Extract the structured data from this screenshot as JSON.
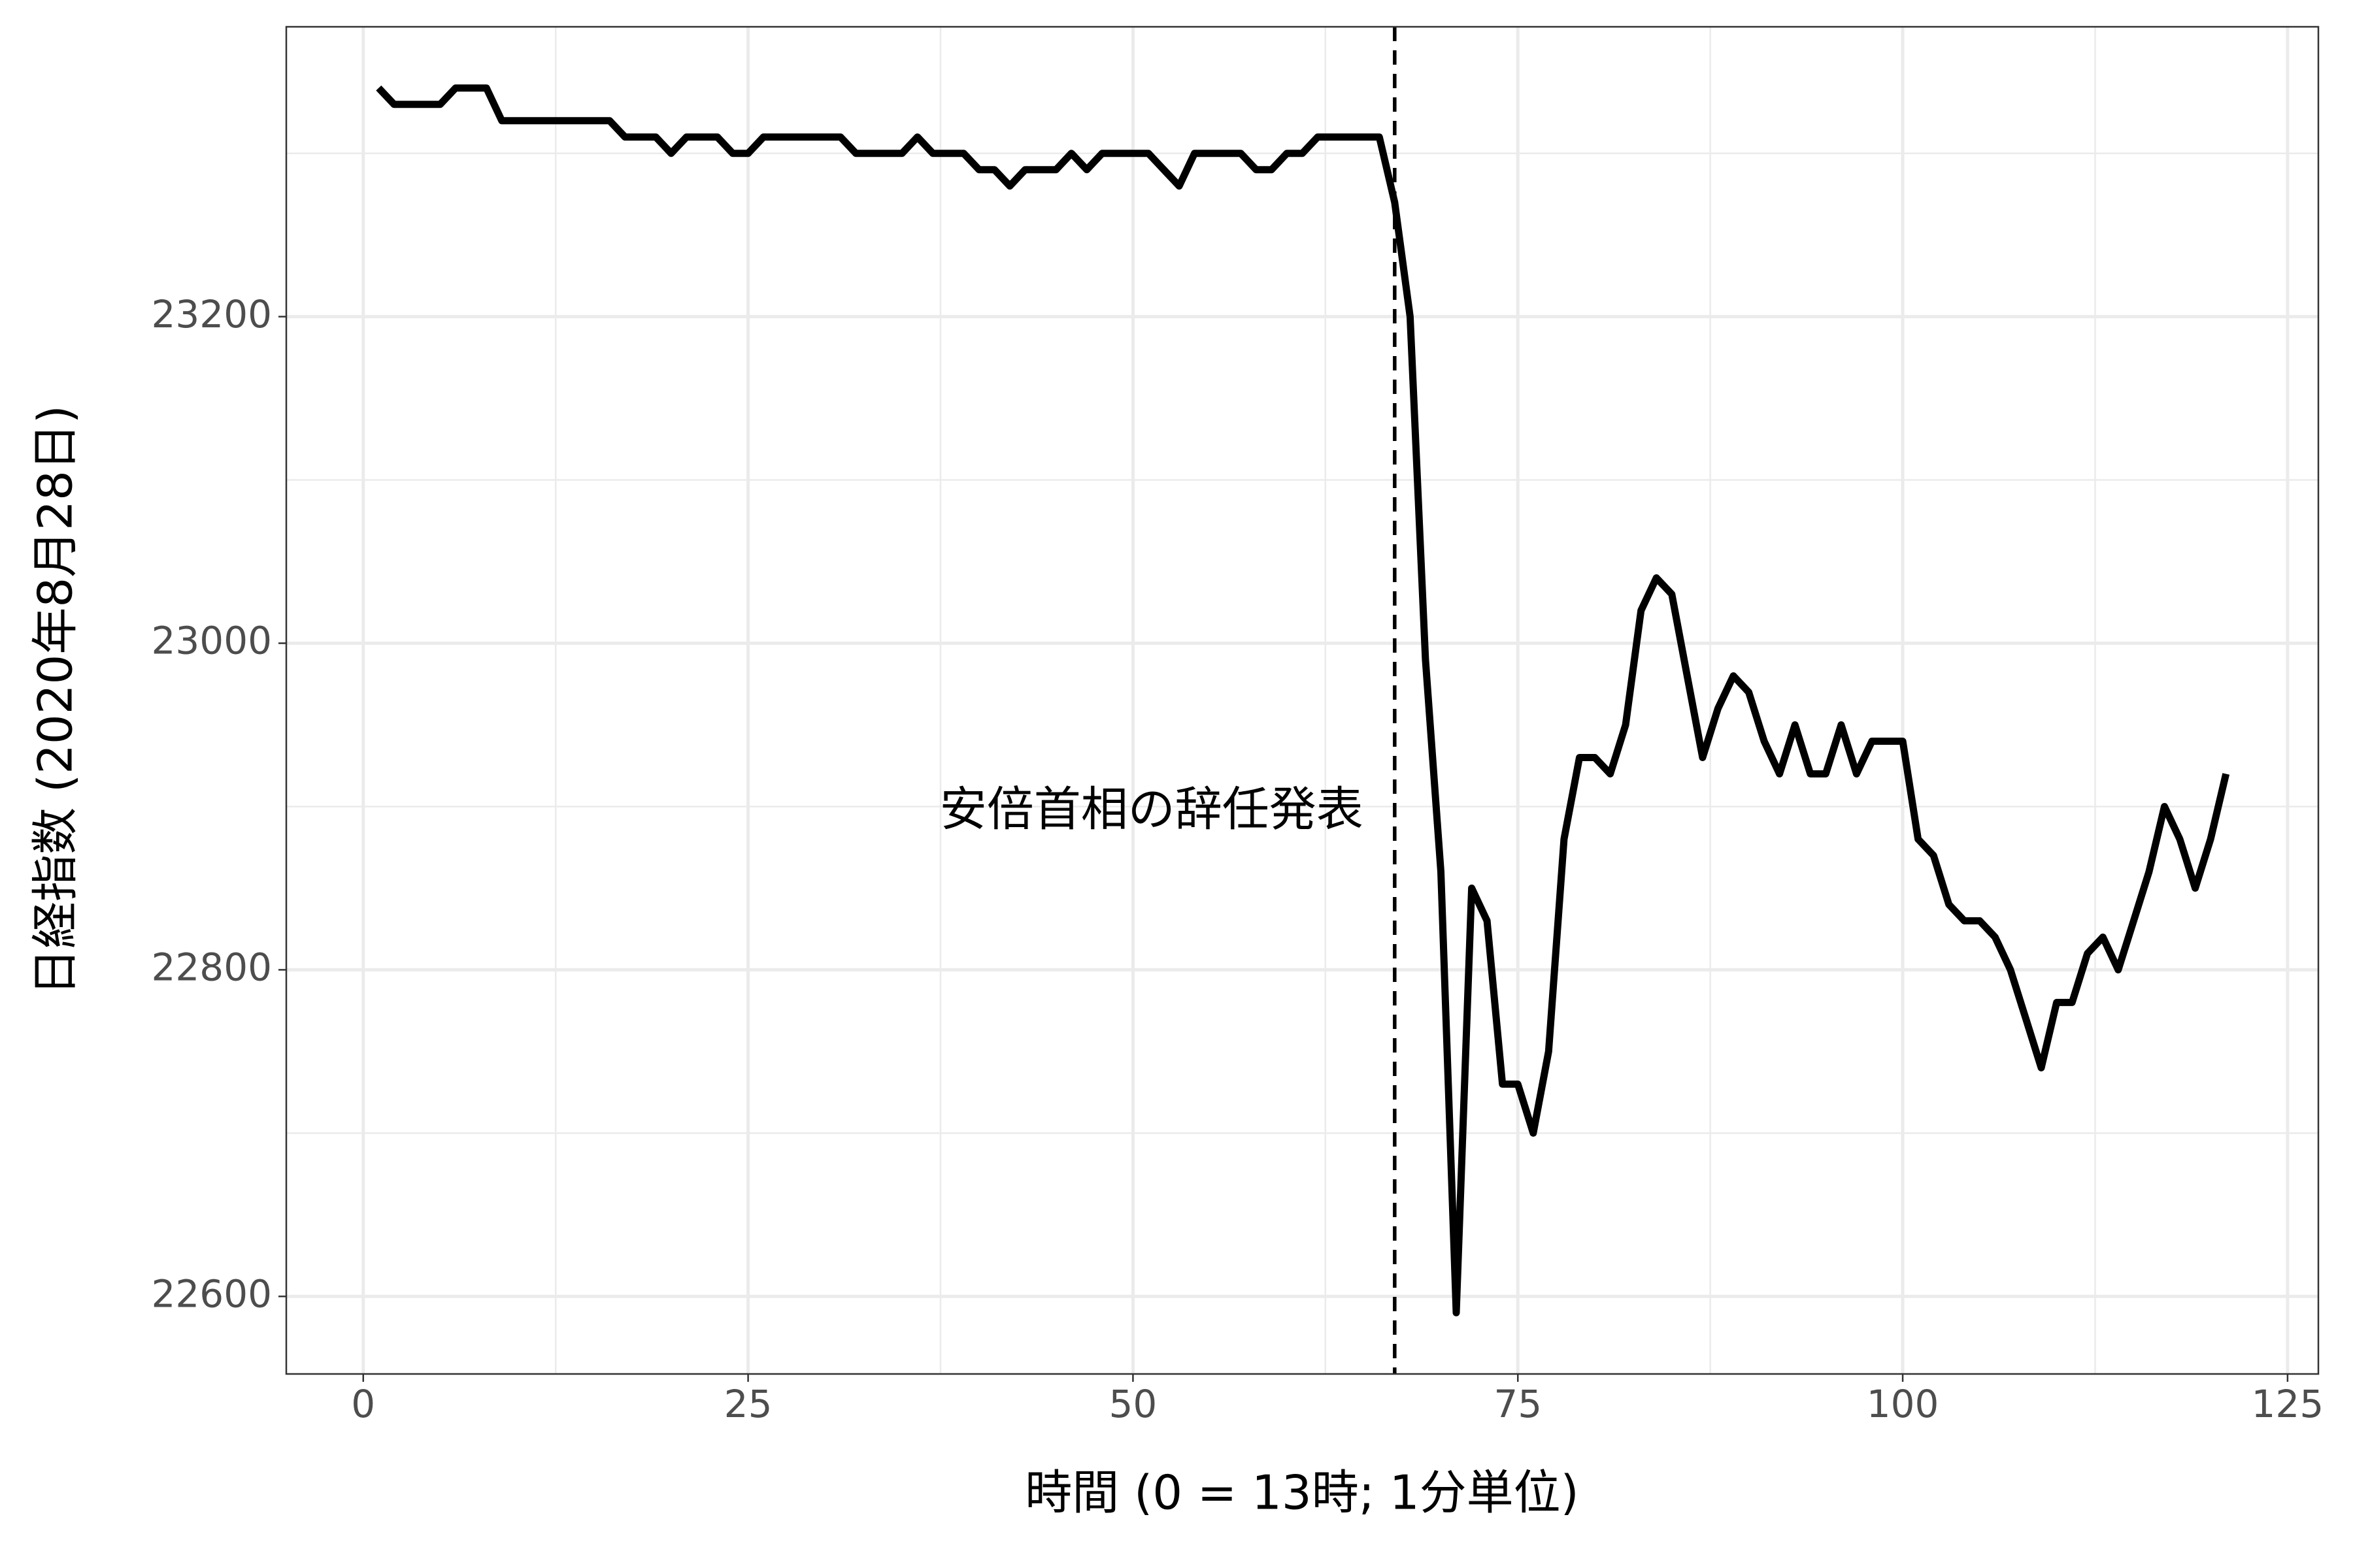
{
  "chart_data": {
    "type": "line",
    "x_label": "時間 (0 = 13時; 1分単位)",
    "y_label": "日経指数 (2020年8月28日)",
    "annotation": "安倍首相の辞任発表",
    "vline": 67,
    "color": "#000000",
    "grid": true,
    "xlim": [
      -5,
      127
    ],
    "ylim": [
      22552.5,
      23377.5
    ],
    "xticks": [
      0,
      25,
      50,
      75,
      100,
      125
    ],
    "yticks": [
      22600,
      22800,
      23000,
      23200
    ],
    "x": [
      1,
      2,
      3,
      4,
      5,
      6,
      7,
      8,
      9,
      10,
      11,
      12,
      13,
      14,
      15,
      16,
      17,
      18,
      19,
      20,
      21,
      22,
      23,
      24,
      25,
      26,
      27,
      28,
      29,
      30,
      31,
      32,
      33,
      34,
      35,
      36,
      37,
      38,
      39,
      40,
      41,
      42,
      43,
      44,
      45,
      46,
      47,
      48,
      49,
      50,
      51,
      52,
      53,
      54,
      55,
      56,
      57,
      58,
      59,
      60,
      61,
      62,
      63,
      64,
      65,
      66,
      67,
      68,
      69,
      70,
      71,
      72,
      73,
      74,
      75,
      76,
      77,
      78,
      79,
      80,
      81,
      82,
      83,
      84,
      85,
      86,
      87,
      88,
      89,
      90,
      91,
      92,
      93,
      94,
      95,
      96,
      97,
      98,
      99,
      100,
      101,
      102,
      103,
      104,
      105,
      106,
      107,
      108,
      109,
      110,
      111,
      112,
      113,
      114,
      115,
      116,
      117,
      118,
      119,
      120,
      121
    ],
    "values": [
      23340,
      23330,
      23330,
      23330,
      23330,
      23340,
      23340,
      23340,
      23320,
      23320,
      23320,
      23320,
      23320,
      23320,
      23320,
      23320,
      23310,
      23310,
      23310,
      23300,
      23310,
      23310,
      23310,
      23300,
      23300,
      23310,
      23310,
      23310,
      23310,
      23310,
      23310,
      23300,
      23300,
      23300,
      23300,
      23310,
      23300,
      23300,
      23300,
      23290,
      23290,
      23280,
      23290,
      23290,
      23290,
      23300,
      23290,
      23300,
      23300,
      23300,
      23300,
      23290,
      23280,
      23300,
      23300,
      23300,
      23300,
      23290,
      23290,
      23300,
      23300,
      23310,
      23310,
      23310,
      23310,
      23310,
      23270,
      23200,
      22990,
      22860,
      22590,
      22850,
      22830,
      22730,
      22730,
      22700,
      22750,
      22880,
      22930,
      22930,
      22920,
      22950,
      23020,
      23040,
      23030,
      22980,
      22930,
      22960,
      22980,
      22970,
      22940,
      22920,
      22950,
      22920,
      22920,
      22950,
      22920,
      22940,
      22940,
      22940,
      22880,
      22870,
      22840,
      22830,
      22830,
      22820,
      22800,
      22770,
      22740,
      22780,
      22780,
      22810,
      22820,
      22800,
      22830,
      22860,
      22900,
      22880,
      22850,
      22880,
      22920
    ]
  }
}
